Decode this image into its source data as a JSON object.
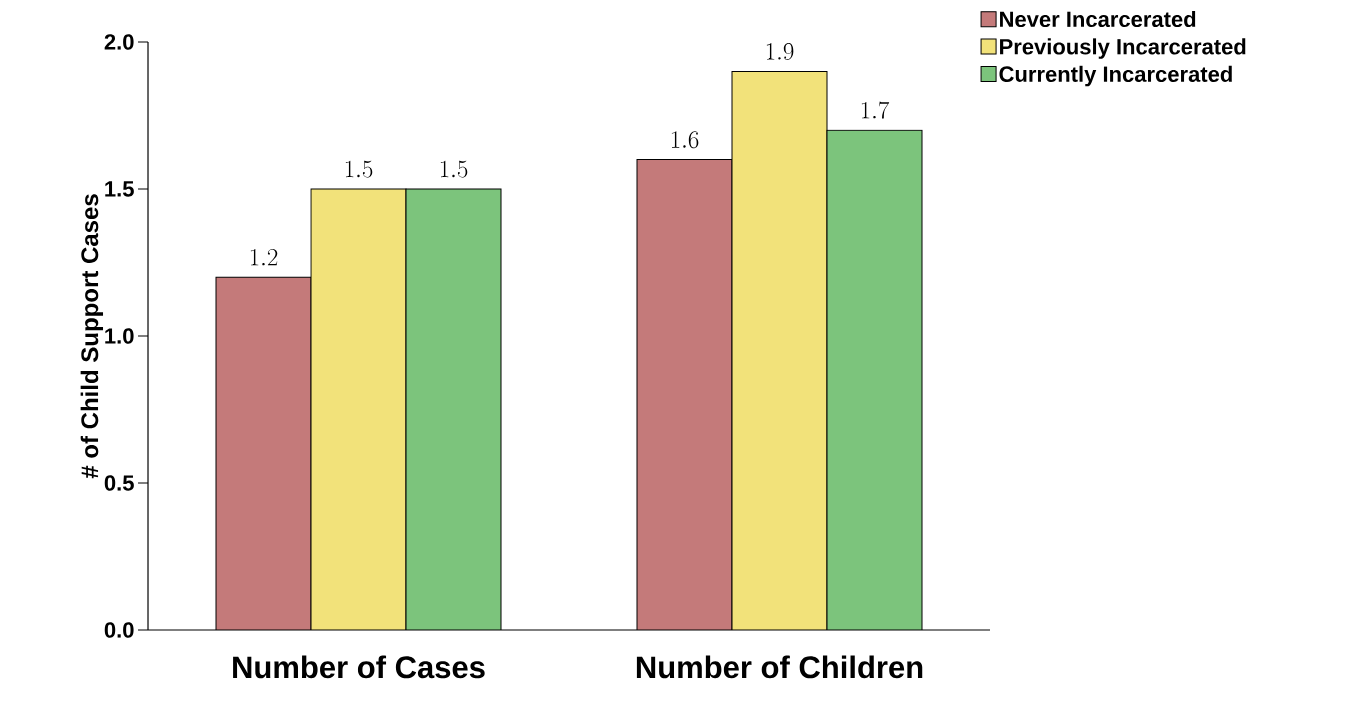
{
  "chart_data": {
    "type": "bar",
    "ylabel": "# of Child Support Cases",
    "categories": [
      "Number of Cases",
      "Number of Children"
    ],
    "series": [
      {
        "name": "Never Incarcerated",
        "color": "#c47a7a",
        "values": [
          1.2,
          1.6
        ]
      },
      {
        "name": "Previously Incarcerated",
        "color": "#f2e27a",
        "values": [
          1.5,
          1.9
        ]
      },
      {
        "name": "Currently Incarcerated",
        "color": "#7cc47c",
        "values": [
          1.5,
          1.7
        ]
      }
    ],
    "ylim": [
      0,
      2
    ],
    "yticks": [
      {
        "value": 0,
        "label": "0.0"
      },
      {
        "value": 0.5,
        "label": "0.5"
      },
      {
        "value": 1,
        "label": "1.0"
      },
      {
        "value": 1.5,
        "label": "1.5"
      },
      {
        "value": 2,
        "label": "2.0"
      }
    ],
    "data_labels": true,
    "legend": "top right",
    "grid": false
  }
}
